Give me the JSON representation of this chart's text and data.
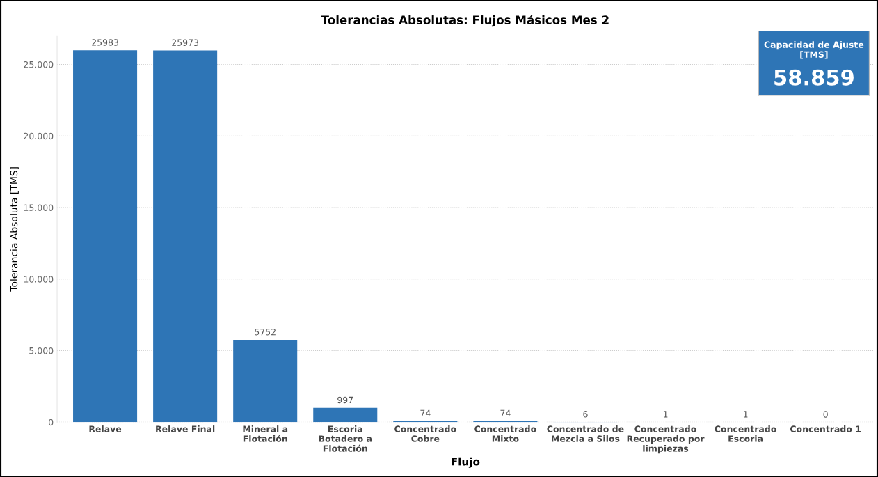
{
  "chart_data": [
    {
      "type": "bar",
      "title": "Tolerancias Absolutas: Flujos Másicos Mes 2",
      "xlabel": "Flujo",
      "ylabel": "Tolerancia Absoluta [TMS]",
      "categories": [
        "Relave",
        "Relave Final",
        "Mineral a Flotación",
        "Escoria Botadero a Flotación",
        "Concentrado Cobre",
        "Concentrado Mixto",
        "Concentrado de Mezcla a Silos",
        "Concentrado Recuperado por limpiezas",
        "Concentrado Escoria",
        "Concentrado 1"
      ],
      "values": [
        25983,
        25973,
        5752,
        997,
        74,
        74,
        6,
        1,
        1,
        0
      ],
      "color": "#2e75b6",
      "data_labels": true,
      "grid": "y",
      "ylim": [
        0,
        27000
      ],
      "yticks": [
        {
          "value": 0,
          "label": "0"
        },
        {
          "value": 5000,
          "label": "5.000"
        },
        {
          "value": 10000,
          "label": "10.000"
        },
        {
          "value": 15000,
          "label": "15.000"
        },
        {
          "value": 20000,
          "label": "20.000"
        },
        {
          "value": 25000,
          "label": "25.000"
        }
      ]
    },
    {
      "type": "other",
      "title": "Capacidad de Ajuste [TMS]",
      "annotations": [
        "58.859"
      ],
      "color": "#2e75b6"
    }
  ]
}
